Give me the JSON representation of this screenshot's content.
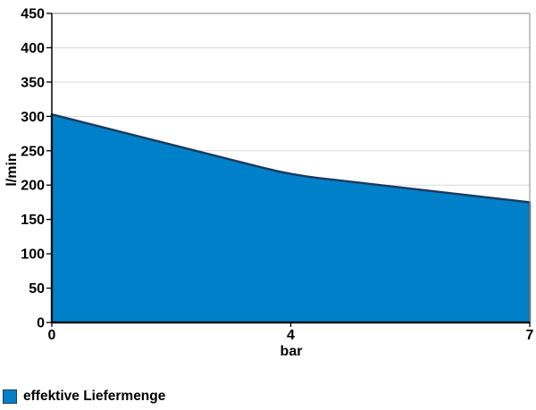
{
  "chart": {
    "x_axis_title": "bar",
    "y_axis_title": "l/min",
    "legend": {
      "label": "effektive Liefermenge"
    },
    "colors": {
      "area_fill": "#0080C8",
      "area_stroke": "#1B3A5E",
      "gridline": "#D9D9D9",
      "plot_border": "#9B9B9B",
      "axis": "#000000",
      "text": "#000000"
    }
  },
  "chart_data": {
    "type": "area",
    "categories": [
      "0",
      "4",
      "7"
    ],
    "series": [
      {
        "name": "effektive Liefermenge",
        "values": [
          303,
          215,
          175
        ]
      }
    ],
    "title": "",
    "xlabel": "bar",
    "ylabel": "l/min",
    "ylim": [
      0,
      450
    ],
    "yticks": [
      0,
      50,
      100,
      150,
      200,
      250,
      300,
      350,
      400,
      450
    ],
    "grid": true,
    "x_axis_type": "category",
    "legend_position": "bottom-left"
  }
}
